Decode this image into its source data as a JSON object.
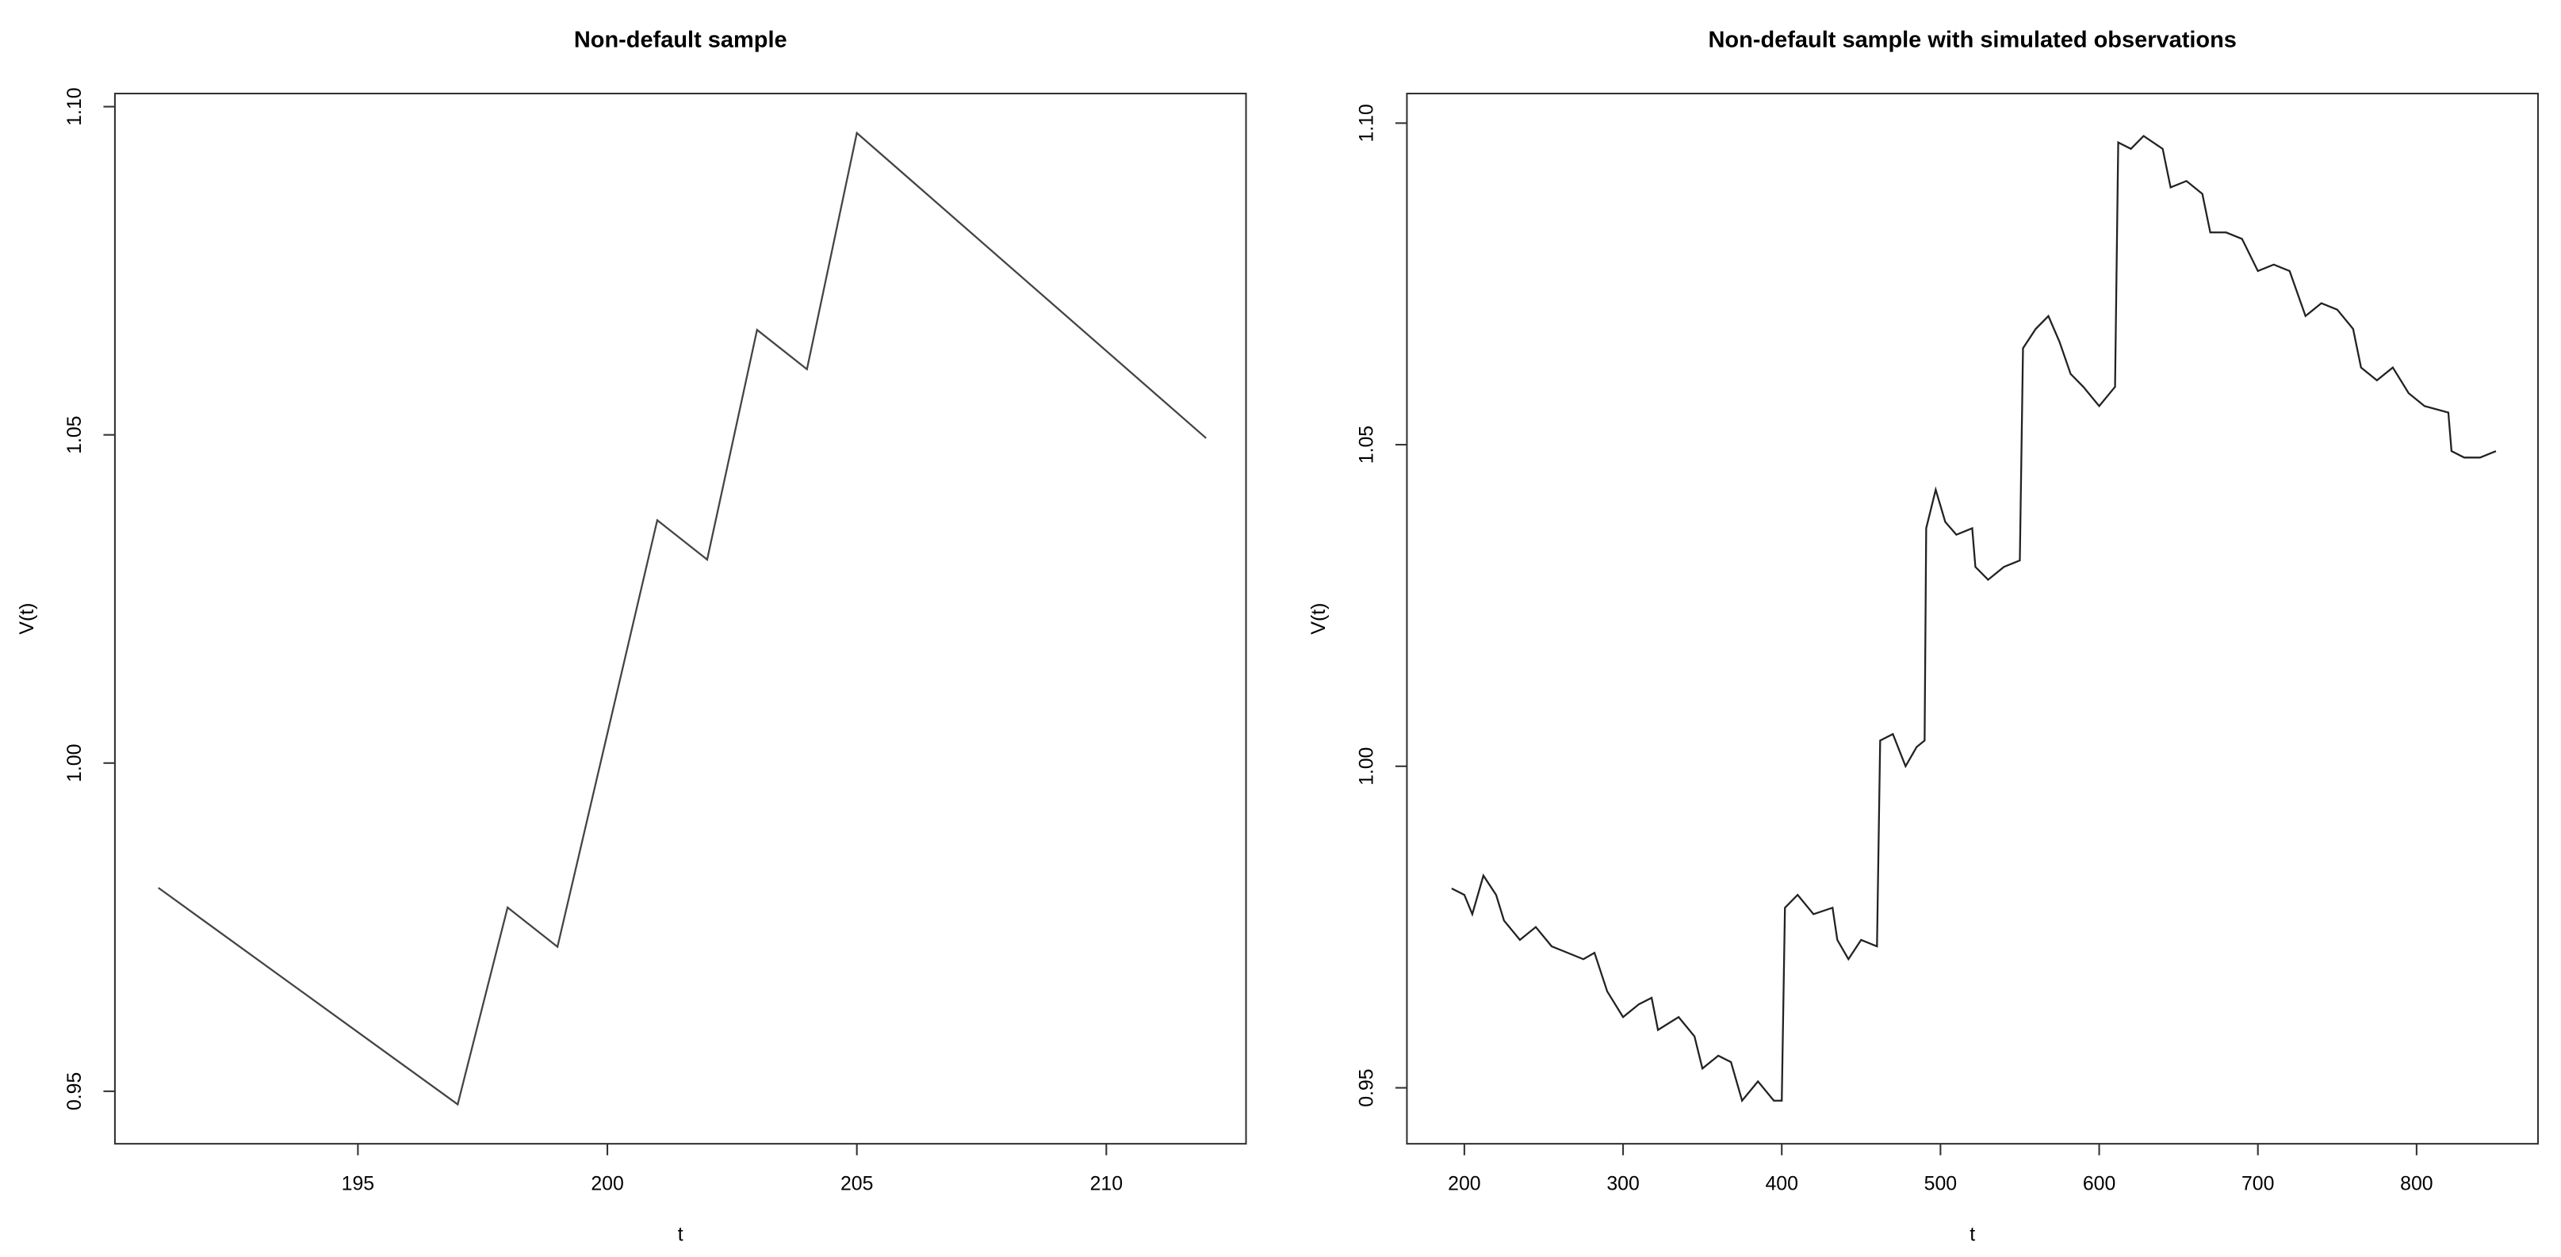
{
  "chart_data": [
    {
      "type": "line",
      "title": "Non-default sample",
      "x_label": "t",
      "y_label": "V(t)",
      "x": [
        191,
        197,
        198,
        199,
        201,
        202,
        203,
        204,
        205,
        212
      ],
      "series": [
        {
          "color": "#444444",
          "values": [
            0.981,
            0.948,
            0.978,
            0.972,
            1.037,
            1.031,
            1.066,
            1.06,
            1.096,
            1.0495
          ]
        }
      ],
      "xlim": [
        190.13,
        212.8
      ],
      "xticks": [
        195,
        200,
        205,
        210
      ],
      "ylim": [
        0.942,
        1.102
      ],
      "yticks": [
        0.95,
        {
          "value": 1.0,
          "label": "1.00"
        },
        1.05,
        {
          "value": 1.1,
          "label": "1.10"
        }
      ]
    },
    {
      "type": "line",
      "title": "Non-default sample with simulated observations",
      "x_label": "t",
      "y_label": "V(t)",
      "x": [
        192,
        200,
        205,
        212,
        220,
        225,
        235,
        245,
        255,
        265,
        275,
        282,
        290,
        300,
        310,
        318,
        322,
        335,
        345,
        350,
        360,
        368,
        375,
        385,
        395,
        400,
        402,
        410,
        420,
        432,
        435,
        442,
        450,
        460,
        462,
        470,
        478,
        485,
        490,
        491,
        497,
        503,
        510,
        520,
        522,
        530,
        540,
        550,
        552,
        560,
        568,
        575,
        582,
        590,
        600,
        610,
        612,
        620,
        628,
        640,
        645,
        655,
        665,
        670,
        680,
        690,
        700,
        710,
        720,
        730,
        740,
        750,
        760,
        765,
        775,
        785,
        795,
        805,
        820,
        822,
        830,
        840,
        850
      ],
      "series": [
        {
          "color": "#222222",
          "values": [
            0.981,
            0.98,
            0.977,
            0.983,
            0.98,
            0.976,
            0.973,
            0.975,
            0.972,
            0.971,
            0.97,
            0.971,
            0.965,
            0.961,
            0.963,
            0.964,
            0.959,
            0.961,
            0.958,
            0.953,
            0.955,
            0.954,
            0.948,
            0.951,
            0.948,
            0.948,
            0.978,
            0.98,
            0.977,
            0.978,
            0.973,
            0.97,
            0.973,
            0.972,
            1.004,
            1.005,
            1.0,
            1.003,
            1.004,
            1.037,
            1.043,
            1.038,
            1.036,
            1.037,
            1.031,
            1.029,
            1.031,
            1.032,
            1.065,
            1.068,
            1.07,
            1.066,
            1.061,
            1.059,
            1.056,
            1.059,
            1.097,
            1.096,
            1.098,
            1.096,
            1.09,
            1.091,
            1.089,
            1.083,
            1.083,
            1.082,
            1.077,
            1.078,
            1.077,
            1.07,
            1.072,
            1.071,
            1.068,
            1.062,
            1.06,
            1.062,
            1.058,
            1.056,
            1.055,
            1.049,
            1.048,
            1.048,
            1.049
          ]
        }
      ],
      "xlim": [
        163.8,
        876.5
      ],
      "xticks": [
        200,
        300,
        400,
        500,
        600,
        700,
        800
      ],
      "ylim": [
        0.9413,
        1.1046
      ],
      "yticks": [
        0.95,
        {
          "value": 1.0,
          "label": "1.00"
        },
        1.05,
        {
          "value": 1.1,
          "label": "1.10"
        }
      ]
    }
  ]
}
